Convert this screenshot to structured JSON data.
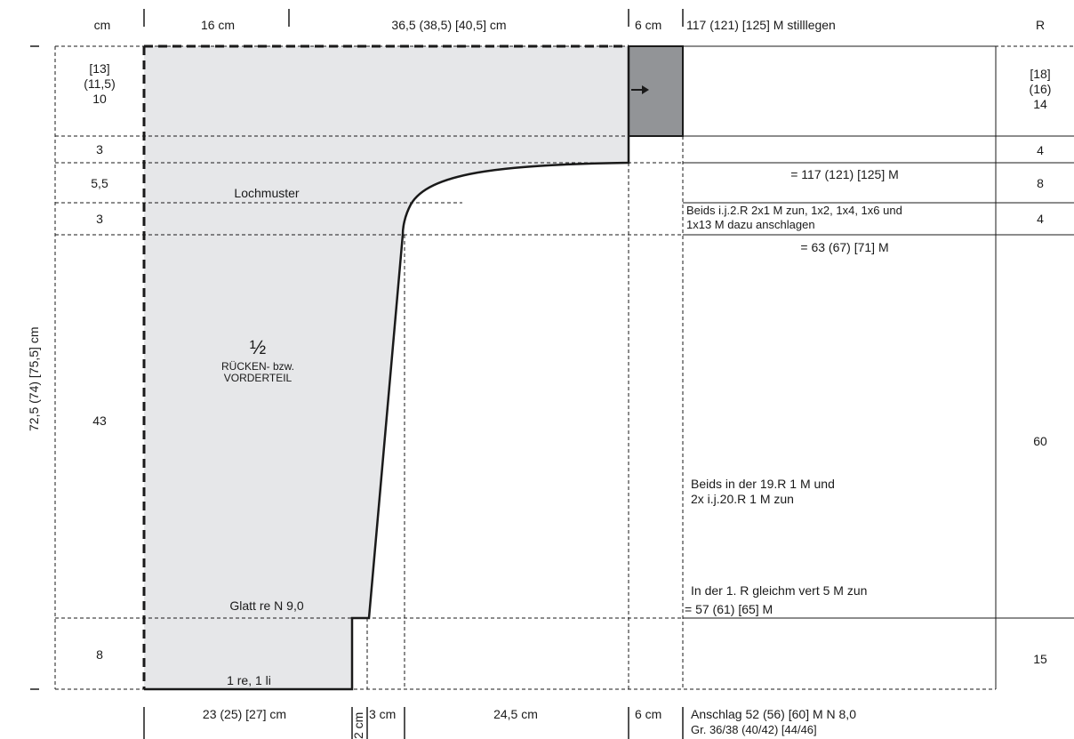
{
  "header": {
    "col_cm": "cm",
    "width_left": "16 cm",
    "width_main": "36,5 (38,5) [40,5] cm",
    "width_sleeve": "6 cm",
    "stitches_hold": "117 (121) [125] M stilllegen",
    "col_rows": "R"
  },
  "left_heights": {
    "shoulder": [
      "[13]",
      "(11,5)",
      "10"
    ],
    "h1": "3",
    "h2": "5,5",
    "h3": "3",
    "body": "43",
    "rib": "8"
  },
  "right_rows": {
    "shoulder": [
      "[18]",
      "(16)",
      "14"
    ],
    "r1": "4",
    "r2": "8",
    "r3": "4",
    "body": "60",
    "rib": "15"
  },
  "total_height": "72,5 (74) [75,5] cm",
  "inside_labels": {
    "lochmuster": "Lochmuster",
    "fraction": "½",
    "piece_line1": "RÜCKEN- bzw.",
    "piece_line2": "VORDERTEIL",
    "glatt": "Glatt re N 9,0",
    "rib": "1 re, 1 li"
  },
  "notes": {
    "n117": "= 117 (121) [125] M",
    "beids1_line1": "Beids i.j.2.R 2x1 M zun, 1x2, 1x4, 1x6 und",
    "beids1_line2": "1x13 M dazu anschlagen",
    "n63": "= 63 (67) [71] M",
    "beids2_line1": "Beids in der 19.R 1 M und",
    "beids2_line2": "2x i.j.20.R 1 M zun",
    "r1_line1": "In der 1. R gleichm vert 5 M zun",
    "r1_line2": "= 57 (61) [65] M"
  },
  "footer": {
    "width_rib": "23 (25) [27] cm",
    "width_2cm": "2 cm",
    "width_3cm": "3 cm",
    "width_mid": "24,5 cm",
    "width_6cm": "6 cm",
    "cast_on": "Anschlag 52 (56) [60] M N 8,0",
    "sizes": "Gr. 36/38 (40/42) [44/46]"
  },
  "colors": {
    "piece_fill": "#e6e7e9",
    "sleeve_fill": "#929497",
    "line": "#1a1a1a"
  }
}
